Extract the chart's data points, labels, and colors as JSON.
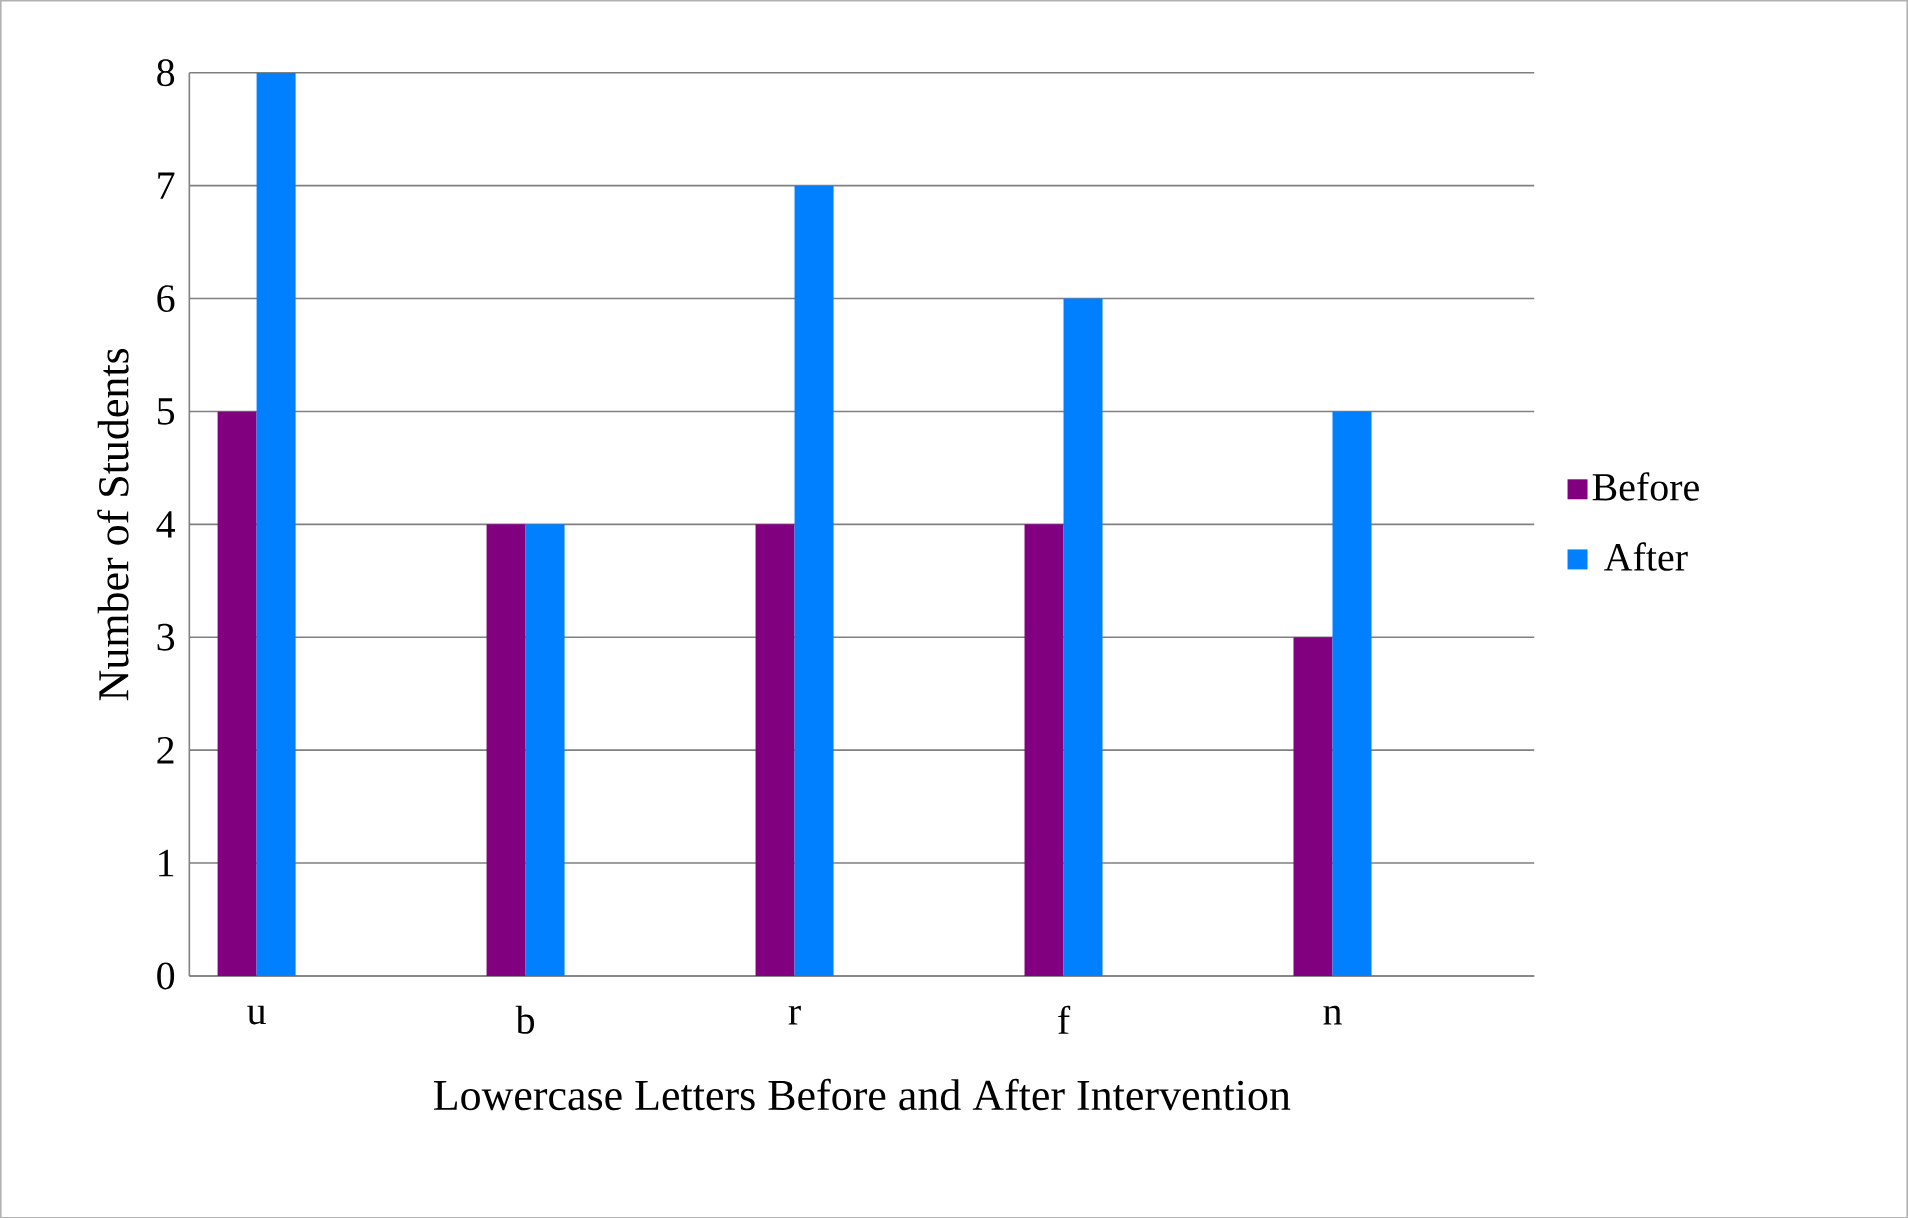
{
  "chart_data": {
    "type": "bar",
    "xlabel": "Lowercase Letters Before and After Intervention",
    "ylabel": "Number of Students",
    "categories": [
      "u",
      null,
      "b",
      null,
      "r",
      null,
      "f",
      null,
      "n",
      null
    ],
    "series": [
      {
        "name": "Before",
        "color": "#800080",
        "values": [
          5,
          null,
          4,
          null,
          4,
          null,
          4,
          null,
          3,
          null
        ]
      },
      {
        "name": "After",
        "color": "#0080ff",
        "values": [
          8,
          null,
          4,
          null,
          7,
          null,
          6,
          null,
          5,
          null
        ]
      }
    ],
    "ylim": [
      0,
      8
    ],
    "yticks": [
      0,
      1,
      2,
      3,
      4,
      5,
      6,
      7,
      8
    ],
    "grid": "y",
    "legend": "right"
  }
}
